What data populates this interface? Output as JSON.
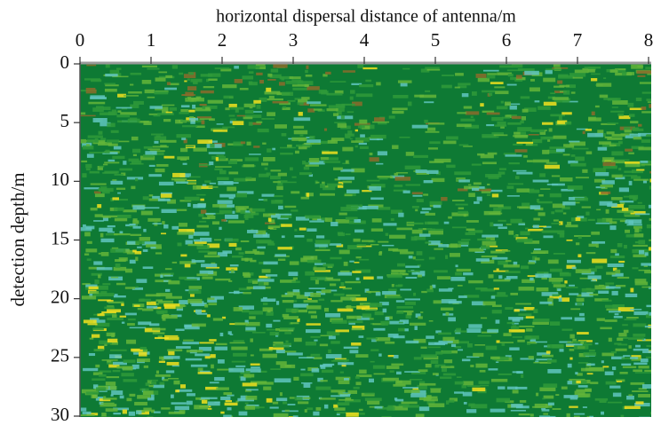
{
  "chart_data": {
    "type": "image",
    "title": "horizontal dispersal distance of antenna/m",
    "y_label": "detection depth/m",
    "xlim": [
      0,
      8
    ],
    "xticks": [
      0,
      1,
      2,
      3,
      4,
      5,
      6,
      7,
      8
    ],
    "ylim": [
      30,
      0
    ],
    "yticks": [
      0,
      5,
      10,
      15,
      20,
      25,
      30
    ]
  }
}
